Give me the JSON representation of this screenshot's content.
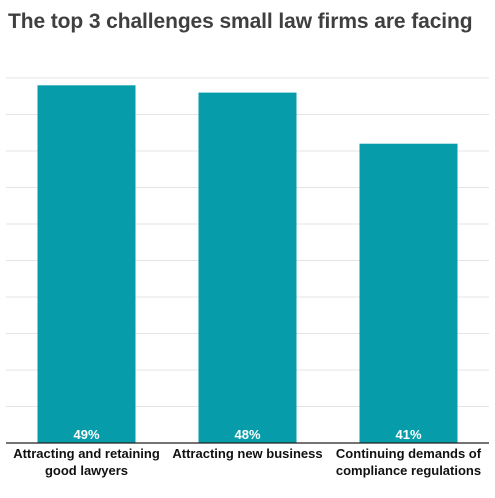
{
  "chart_data": {
    "type": "bar",
    "title": "The top 3 challenges small law firms are facing",
    "categories": [
      [
        "Attracting and retaining",
        "good lawyers"
      ],
      [
        "Attracting new business"
      ],
      [
        "Continuing demands of",
        "compliance regulations"
      ]
    ],
    "values": [
      49,
      48,
      41
    ],
    "value_labels": [
      "49%",
      "48%",
      "41%"
    ],
    "ylim": [
      0,
      50
    ],
    "grid": true,
    "bar_color": "#079ca9",
    "xlabel": "",
    "ylabel": ""
  }
}
